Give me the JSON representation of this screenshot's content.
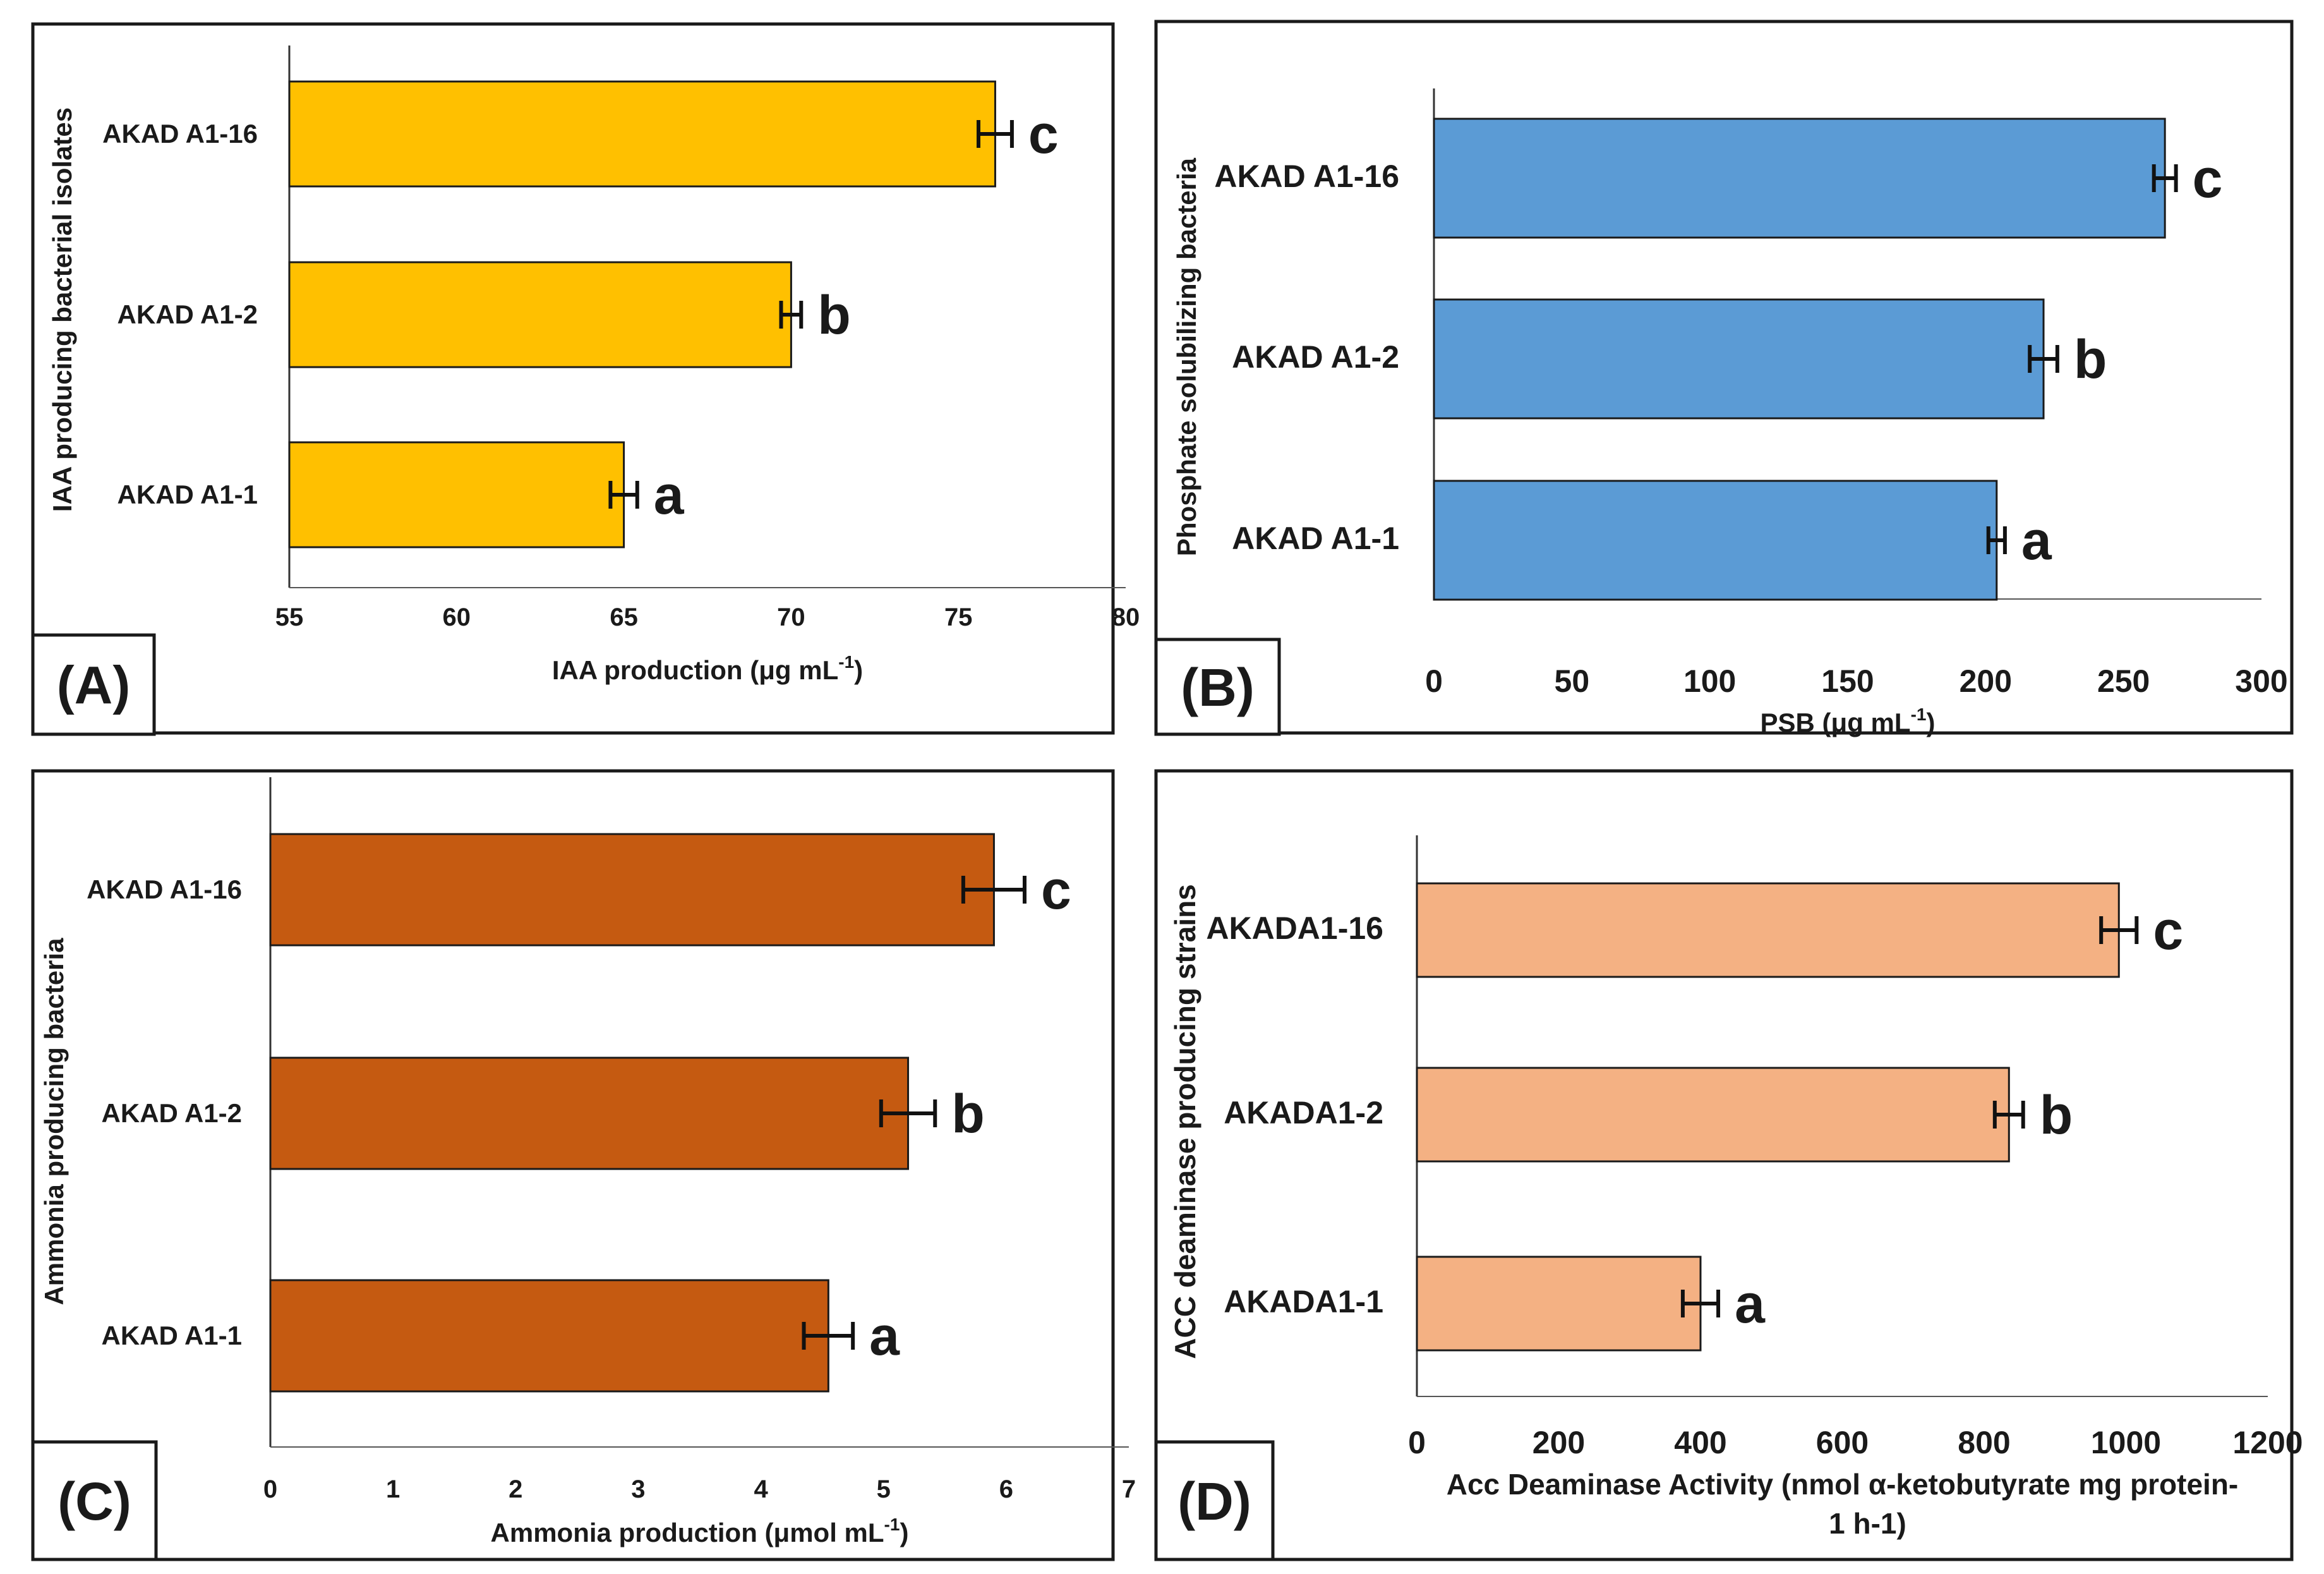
{
  "chart_data": [
    {
      "type": "bar",
      "orientation": "horizontal",
      "panel_label": "(A)",
      "title": "",
      "xlabel": "IAA production  (μg mL",
      "xlabel_sup": "-1",
      "xlabel_suffix": ")",
      "ylabel": "IAA producing bacterial isolates",
      "categories": [
        "AKAD A1-16",
        "AKAD A1-2",
        "AKAD A1-1"
      ],
      "values": [
        76.1,
        70.0,
        65.0
      ],
      "errors": [
        0.5,
        0.3,
        0.4
      ],
      "significance": [
        "c",
        "b",
        "a"
      ],
      "xlim": [
        55,
        80
      ],
      "xticks": [
        "55",
        "60",
        "65",
        "70",
        "75",
        "80"
      ],
      "bar_color": "#FFC000",
      "grid": false
    },
    {
      "type": "bar",
      "orientation": "horizontal",
      "panel_label": "(B)",
      "title": "",
      "xlabel": "PSB (μg mL",
      "xlabel_sup": "-1",
      "xlabel_suffix": ")",
      "ylabel": "Phosphate solubilizing bacteria",
      "categories": [
        "AKAD A1-16",
        "AKAD A1-2",
        "AKAD A1-1"
      ],
      "values": [
        265,
        221,
        204
      ],
      "errors": [
        4,
        5,
        3
      ],
      "significance": [
        "c",
        "b",
        "a"
      ],
      "xlim": [
        0,
        300
      ],
      "xticks": [
        "0",
        "50",
        "100",
        "150",
        "200",
        "250",
        "300"
      ],
      "bar_color": "#5B9BD5",
      "grid": false
    },
    {
      "type": "bar",
      "orientation": "horizontal",
      "panel_label": "(C)",
      "title": "",
      "xlabel": "Ammonia production (μmol mL",
      "xlabel_sup": "-1",
      "xlabel_suffix": ")",
      "ylabel": "Ammonia producing  bacteria",
      "categories": [
        "AKAD A1-16",
        "AKAD A1-2",
        "AKAD A1-1"
      ],
      "values": [
        5.9,
        5.2,
        4.55
      ],
      "errors": [
        0.25,
        0.22,
        0.2
      ],
      "significance": [
        "c",
        "b",
        "a"
      ],
      "xlim": [
        0,
        7
      ],
      "xticks": [
        "0",
        "1",
        "2",
        "3",
        "4",
        "5",
        "6",
        "7"
      ],
      "bar_color": "#C55A11",
      "grid": false
    },
    {
      "type": "bar",
      "orientation": "horizontal",
      "panel_label": "(D)",
      "title": "",
      "xlabel": "Acc Deaminase Activity (nmol α-ketobutyrate mg protein-",
      "xlabel_line2": "1 h-1)",
      "ylabel": "ACC deaminase producing strains",
      "categories": [
        "AKADA1-16",
        "AKADA1-2",
        "AKADA1-1"
      ],
      "values": [
        990,
        835,
        400
      ],
      "errors": [
        25,
        20,
        25
      ],
      "significance": [
        "c",
        "b",
        "a"
      ],
      "xlim": [
        0,
        1200
      ],
      "xticks": [
        "0",
        "200",
        "400",
        "600",
        "800",
        "1000",
        "1200"
      ],
      "bar_color": "#F4B183",
      "grid": false
    }
  ]
}
